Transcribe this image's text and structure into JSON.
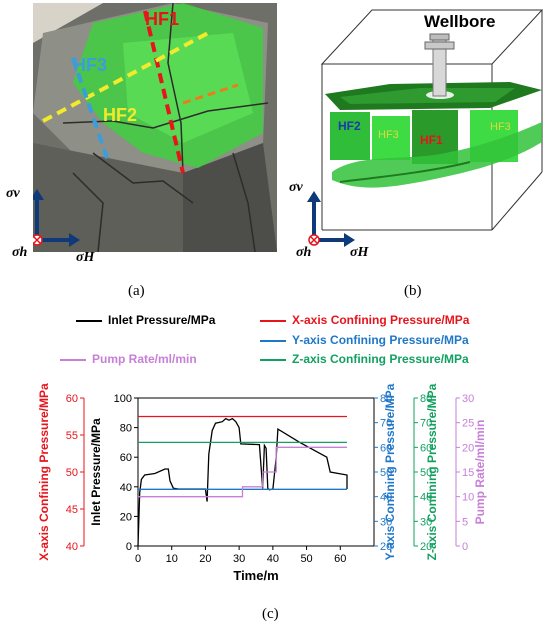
{
  "panel_a": {
    "label": "(a)",
    "fracture_labels": [
      "HF1",
      "HF2",
      "HF3"
    ],
    "stress_labels": {
      "sv": "σv",
      "sh": "σh",
      "sH": "σH"
    },
    "colors": {
      "HF1": "#e8141b",
      "HF2": "#f2ea2a",
      "HF3": "#3b9ddb",
      "extra": "#ee7a18",
      "rock": "#8b8b86",
      "paint": "#3fcf3f"
    }
  },
  "panel_b": {
    "label": "(b)",
    "wellbore_label": "Wellbore",
    "fracture_labels": [
      "HF2",
      "HF3",
      "HF1",
      "HF3"
    ],
    "stress_labels": {
      "sv": "σv",
      "sh": "σh",
      "sH": "σH"
    }
  },
  "panel_c": {
    "label": "(c)"
  },
  "chart_data": {
    "type": "line",
    "xlabel": "Time/m",
    "xlim": [
      0,
      70
    ],
    "xticks": [
      0,
      10,
      20,
      30,
      40,
      50,
      60
    ],
    "axes": [
      {
        "id": "inlet",
        "label": "Inlet Pressure/MPa",
        "color": "#000000",
        "lim": [
          0,
          100
        ],
        "ticks": [
          0,
          20,
          40,
          60,
          80,
          100
        ]
      },
      {
        "id": "xconf",
        "label": "X-axis Confining Pressure/MPa",
        "color": "#e8141b",
        "lim": [
          40,
          60
        ],
        "ticks": [
          40,
          45,
          50,
          55,
          60
        ]
      },
      {
        "id": "yconf",
        "label": "Y-axis Confining Pressure/MPa",
        "color": "#1f77c8",
        "lim": [
          20,
          80
        ],
        "ticks": [
          20,
          30,
          40,
          50,
          60,
          70,
          80
        ]
      },
      {
        "id": "zconf",
        "label": "Z-axis Confining Pressure/MPa",
        "color": "#12a060",
        "lim": [
          20,
          80
        ],
        "ticks": [
          20,
          30,
          40,
          50,
          60,
          70,
          80
        ]
      },
      {
        "id": "pump",
        "label": "Pump Rate/ml/min",
        "color": "#c77fd8",
        "lim": [
          0,
          30
        ],
        "ticks": [
          0,
          5,
          10,
          15,
          20,
          25,
          30
        ]
      }
    ],
    "series": [
      {
        "name": "Inlet Pressure/MPa",
        "axis": "inlet",
        "color": "#000000",
        "points": [
          [
            0,
            0
          ],
          [
            0.5,
            36
          ],
          [
            1,
            45
          ],
          [
            2,
            48
          ],
          [
            5,
            49
          ],
          [
            8,
            52
          ],
          [
            9,
            52
          ],
          [
            9.5,
            44
          ],
          [
            10.5,
            39
          ],
          [
            12,
            38.5
          ],
          [
            20,
            38.5
          ],
          [
            20.5,
            30
          ],
          [
            21,
            62
          ],
          [
            22,
            78
          ],
          [
            23,
            83
          ],
          [
            25,
            84
          ],
          [
            26,
            86
          ],
          [
            27,
            85
          ],
          [
            28,
            86
          ],
          [
            29,
            84
          ],
          [
            30,
            80
          ],
          [
            30.5,
            69
          ],
          [
            36,
            68.5
          ],
          [
            37,
            39
          ],
          [
            37.5,
            68
          ],
          [
            38,
            66
          ],
          [
            38.5,
            39
          ],
          [
            39,
            38
          ],
          [
            40,
            38.5
          ],
          [
            41,
            60
          ],
          [
            41.5,
            79
          ],
          [
            48,
            70
          ],
          [
            56,
            60
          ],
          [
            57,
            50
          ],
          [
            62,
            48
          ],
          [
            62,
            38.5
          ]
        ]
      },
      {
        "name": "X-axis Confining Pressure/MPa",
        "axis": "xconf",
        "color": "#e8141b",
        "points": [
          [
            0,
            57.5
          ],
          [
            62,
            57.5
          ]
        ]
      },
      {
        "name": "Y-axis Confining Pressure/MPa",
        "axis": "yconf",
        "color": "#1f77c8",
        "points": [
          [
            0,
            43
          ],
          [
            62,
            43
          ]
        ]
      },
      {
        "name": "Z-axis Confining Pressure/MPa",
        "axis": "zconf",
        "color": "#12a060",
        "points": [
          [
            0,
            62
          ],
          [
            62,
            62
          ]
        ]
      },
      {
        "name": "Pump Rate/ml/min",
        "axis": "pump",
        "color": "#c77fd8",
        "points": [
          [
            0,
            10
          ],
          [
            31,
            10
          ],
          [
            31,
            12
          ],
          [
            37,
            12
          ],
          [
            37,
            15
          ],
          [
            41,
            15
          ],
          [
            41,
            20
          ],
          [
            62,
            20
          ]
        ]
      }
    ]
  }
}
